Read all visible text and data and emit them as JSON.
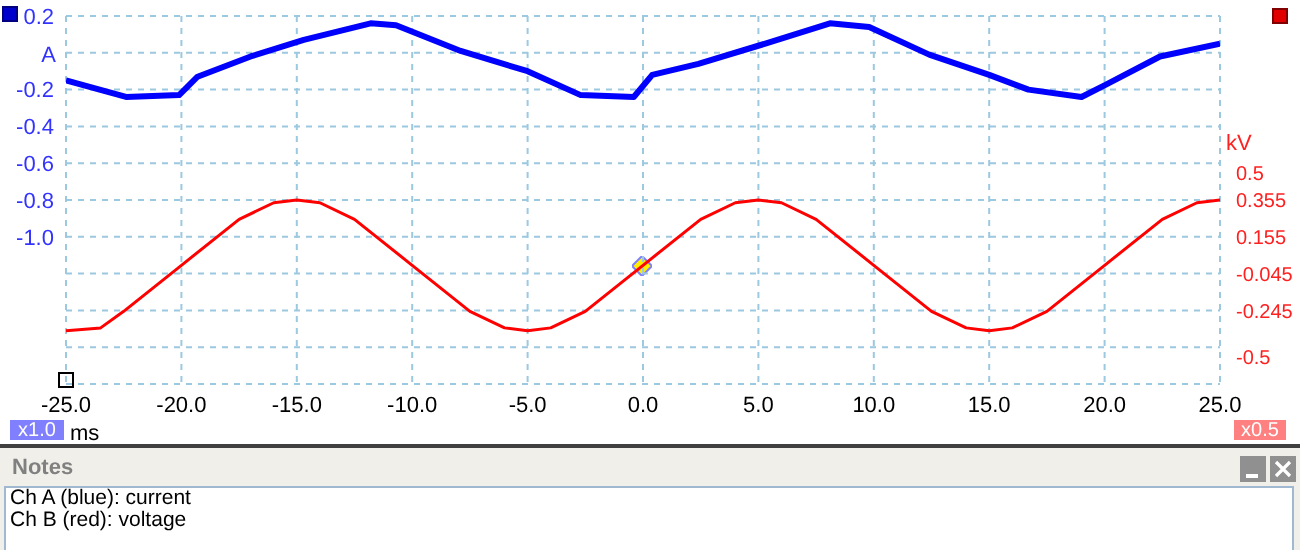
{
  "chart_data": {
    "type": "line",
    "ylabel": "A",
    "y2label": "kV",
    "xlabel": "ms",
    "xlim": [
      -25,
      25
    ],
    "xticks": [
      {
        "value": -25,
        "label": "-25.0"
      },
      {
        "value": -20,
        "label": "-20.0"
      },
      {
        "value": -15,
        "label": "-15.0"
      },
      {
        "value": -10,
        "label": "-10.0"
      },
      {
        "value": -5,
        "label": "-5.0"
      },
      {
        "value": 0,
        "label": "0.0"
      },
      {
        "value": 5,
        "label": "5.0"
      },
      {
        "value": 10,
        "label": "10.0"
      },
      {
        "value": 15,
        "label": "15.0"
      },
      {
        "value": 20,
        "label": "20.0"
      },
      {
        "value": 25,
        "label": "25.0"
      }
    ],
    "ylim": [
      -1.8,
      0.2
    ],
    "yticks": [
      0.2,
      {
        "value": 0,
        "label": null
      },
      -0.2,
      -0.4,
      -0.6,
      -0.8,
      {
        "value": -1.0,
        "label": "-1.0"
      },
      {
        "value": -1.2,
        "label": null
      },
      {
        "value": -1.4,
        "label": null
      },
      {
        "value": -1.6,
        "label": null
      },
      {
        "value": -1.8,
        "label": null
      }
    ],
    "y2lim": [
      -0.645,
      1.355
    ],
    "y2ticks": [
      0.5,
      0.355,
      0.155,
      -0.045,
      -0.245,
      -0.5
    ],
    "grid": true,
    "legend": false,
    "marker": "none",
    "line_style": "solid",
    "series": [
      {
        "color": "#0000ff",
        "x": [
          -25,
          -22.4,
          -20.1,
          -19.3,
          -17,
          -14.7,
          -11.8,
          -10.7,
          -7.9,
          -5,
          -2.7,
          -0.4,
          0.4,
          2.4,
          5.3,
          8.1,
          9.8,
          12.4,
          15,
          16.7,
          19,
          20.1,
          22.4,
          25
        ],
        "values": [
          -0.15,
          -0.24,
          -0.23,
          -0.13,
          -0.02,
          0.07,
          0.16,
          0.15,
          0.01,
          -0.1,
          -0.23,
          -0.24,
          -0.12,
          -0.06,
          0.05,
          0.16,
          0.14,
          -0.01,
          -0.12,
          -0.2,
          -0.24,
          -0.17,
          -0.02,
          0.05
        ]
      },
      {
        "color": "#ff0000",
        "axis": "y2",
        "x": [
          -25,
          -23.5,
          -22.5,
          -20,
          -17.5,
          -16,
          -15,
          -14,
          -12.5,
          -10,
          -7.5,
          -6,
          -5,
          -4,
          -2.5,
          0,
          2.5,
          4,
          5,
          6,
          7.5,
          10,
          12.5,
          14,
          15,
          16,
          17.5,
          20,
          22.5,
          24,
          25
        ],
        "values": [
          -0.355,
          -0.34,
          -0.25,
          0,
          0.25,
          0.34,
          0.355,
          0.34,
          0.25,
          0,
          -0.25,
          -0.34,
          -0.355,
          -0.34,
          -0.25,
          0,
          0.25,
          0.34,
          0.355,
          0.34,
          0.25,
          0,
          -0.25,
          -0.34,
          -0.355,
          -0.34,
          -0.25,
          0,
          0.25,
          0.34,
          0.355
        ]
      }
    ],
    "annotations": [
      "x1.0",
      "x0.5",
      "Notes",
      "Ch A (blue): current",
      "Ch B (red): voltage"
    ]
  }
}
